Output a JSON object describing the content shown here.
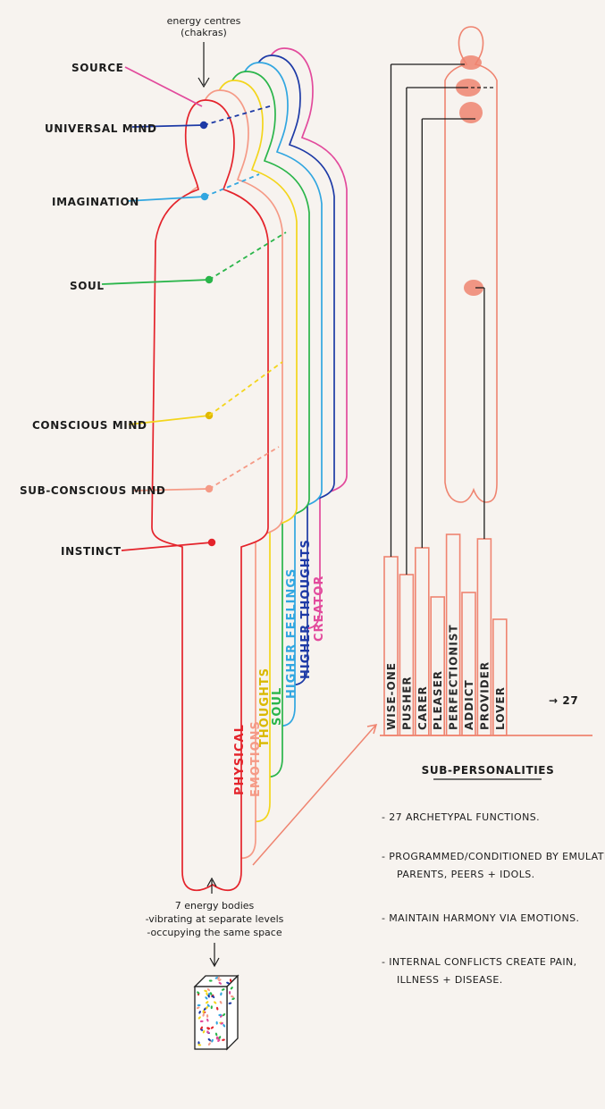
{
  "palette": {
    "physical": "#e4232b",
    "emotions": "#f59a86",
    "thoughts": "#f3d51c",
    "soul": "#2ab54a",
    "higher_feelings": "#31a6e0",
    "higher_thoughts": "#1d3aa6",
    "creator": "#e24a9c",
    "ink": "#1c1c1c",
    "salmon": "#ef8470"
  },
  "energy_centres_note": {
    "line1": "energy centres",
    "line2": "(chakras)"
  },
  "chakra_labels": [
    {
      "text": "SOURCE",
      "color": "#e24a9c"
    },
    {
      "text": "UNIVERSAL MIND",
      "color": "#1d3aa6"
    },
    {
      "text": "IMAGINATION",
      "color": "#31a6e0"
    },
    {
      "text": "SOUL",
      "color": "#2ab54a"
    },
    {
      "text": "CONSCIOUS MIND",
      "color": "#f3d51c"
    },
    {
      "text": "SUB-CONSCIOUS MIND",
      "color": "#f59a86"
    },
    {
      "text": "INSTINCT",
      "color": "#e4232b"
    }
  ],
  "bodies": [
    {
      "text": "PHYSICAL",
      "color": "#e4232b"
    },
    {
      "text": "EMOTIONS",
      "color": "#f59a86"
    },
    {
      "text": "THOUGHTS",
      "color": "#f3d51c"
    },
    {
      "text": "SOUL",
      "color": "#2ab54a"
    },
    {
      "text": "HIGHER FEELINGS",
      "color": "#31a6e0"
    },
    {
      "text": "HIGHER THOUGHTS",
      "color": "#1d3aa6"
    },
    {
      "text": "CREATOR",
      "color": "#e24a9c"
    }
  ],
  "energy_bodies_note": {
    "line1": "7 energy bodies",
    "line2": "-vibrating at separate levels",
    "line3": "-occupying the same space"
  },
  "sub_personalities": {
    "bars": [
      {
        "label": "WISE-ONE",
        "height": 200
      },
      {
        "label": "PUSHER",
        "height": 180
      },
      {
        "label": "CARER",
        "height": 210
      },
      {
        "label": "PLEASER",
        "height": 155
      },
      {
        "label": "PERFECTIONIST",
        "height": 225
      },
      {
        "label": "ADDICT",
        "height": 160
      },
      {
        "label": "PROVIDER",
        "height": 220
      },
      {
        "label": "LOVER",
        "height": 130
      }
    ],
    "count_label": "→ 27",
    "title": "SUB-PERSONALITIES",
    "notes": [
      {
        "line1": "- 27 ARCHETYPAL FUNCTIONS.",
        "line2": ""
      },
      {
        "line1": "- PROGRAMMED/CONDITIONED BY EMULATING",
        "line2": "PARENTS, PEERS + IDOLS."
      },
      {
        "line1": "- MAINTAIN HARMONY VIA EMOTIONS.",
        "line2": ""
      },
      {
        "line1": "- INTERNAL CONFLICTS CREATE PAIN,",
        "line2": "ILLNESS + DISEASE."
      }
    ]
  }
}
